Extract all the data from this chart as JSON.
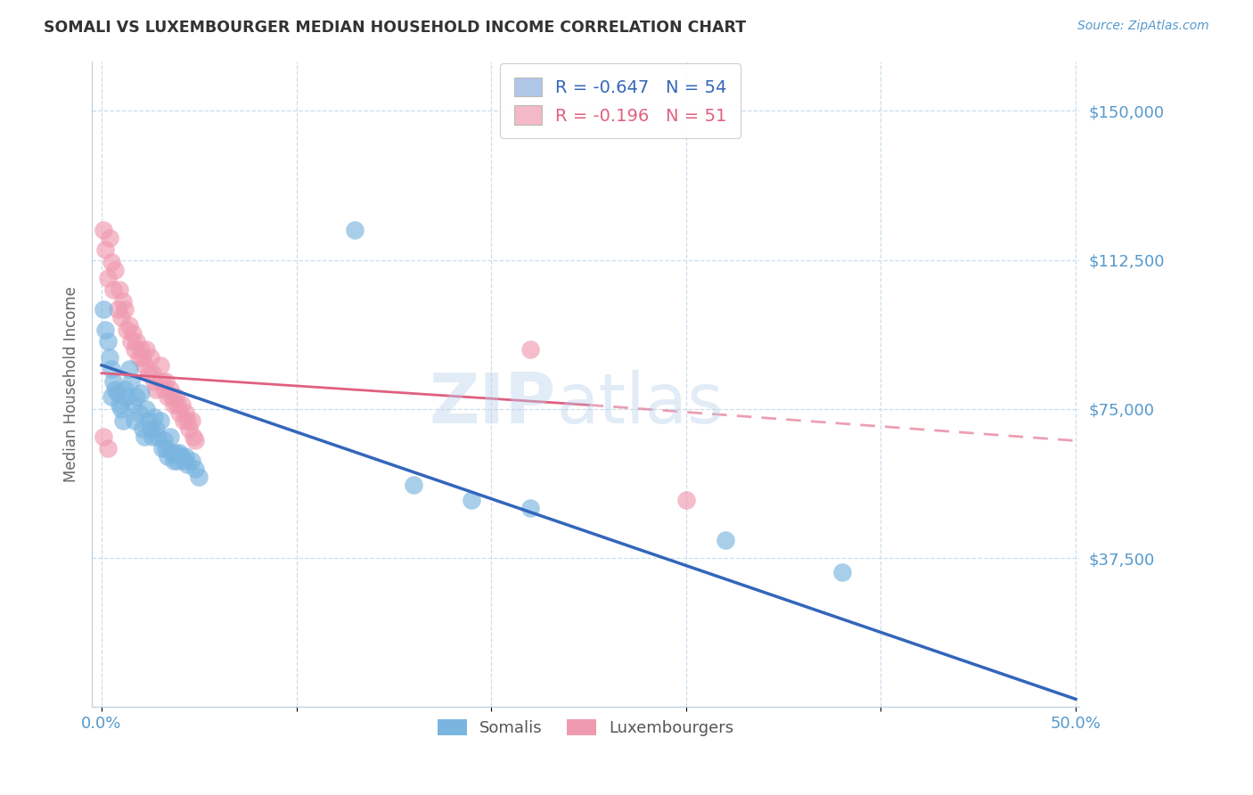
{
  "title": "SOMALI VS LUXEMBOURGER MEDIAN HOUSEHOLD INCOME CORRELATION CHART",
  "source_text": "Source: ZipAtlas.com",
  "ylabel": "Median Household Income",
  "xlim": [
    0.0,
    0.5
  ],
  "ylim": [
    0,
    162500
  ],
  "yticks": [
    0,
    37500,
    75000,
    112500,
    150000
  ],
  "yticklabels": [
    "",
    "$37,500",
    "$75,000",
    "$112,500",
    "$150,000"
  ],
  "watermark_zip": "ZIP",
  "watermark_atlas": "atlas",
  "somali_color": "#7ab5e0",
  "luxembourger_color": "#f09ab0",
  "somali_line_color": "#3366bb",
  "luxembourger_line_color": "#e06080",
  "legend_box_color_1": "#aec6e8",
  "legend_box_color_2": "#f4b8c8",
  "somali_scatter": [
    [
      0.001,
      100000
    ],
    [
      0.002,
      95000
    ],
    [
      0.003,
      92000
    ],
    [
      0.004,
      88000
    ],
    [
      0.005,
      85000
    ],
    [
      0.005,
      78000
    ],
    [
      0.006,
      82000
    ],
    [
      0.007,
      80000
    ],
    [
      0.008,
      79000
    ],
    [
      0.009,
      76000
    ],
    [
      0.01,
      75000
    ],
    [
      0.011,
      72000
    ],
    [
      0.012,
      80000
    ],
    [
      0.013,
      78000
    ],
    [
      0.014,
      85000
    ],
    [
      0.015,
      82000
    ],
    [
      0.016,
      76000
    ],
    [
      0.017,
      72000
    ],
    [
      0.018,
      78000
    ],
    [
      0.019,
      74000
    ],
    [
      0.02,
      79000
    ],
    [
      0.021,
      70000
    ],
    [
      0.022,
      68000
    ],
    [
      0.023,
      75000
    ],
    [
      0.024,
      72000
    ],
    [
      0.025,
      70000
    ],
    [
      0.026,
      68000
    ],
    [
      0.027,
      73000
    ],
    [
      0.028,
      70000
    ],
    [
      0.029,
      68000
    ],
    [
      0.03,
      72000
    ],
    [
      0.031,
      65000
    ],
    [
      0.032,
      67000
    ],
    [
      0.033,
      65000
    ],
    [
      0.034,
      63000
    ],
    [
      0.035,
      68000
    ],
    [
      0.036,
      64000
    ],
    [
      0.037,
      62000
    ],
    [
      0.038,
      64000
    ],
    [
      0.039,
      62000
    ],
    [
      0.04,
      64000
    ],
    [
      0.041,
      63000
    ],
    [
      0.042,
      62000
    ],
    [
      0.043,
      63000
    ],
    [
      0.044,
      61000
    ],
    [
      0.046,
      62000
    ],
    [
      0.048,
      60000
    ],
    [
      0.05,
      58000
    ],
    [
      0.13,
      120000
    ],
    [
      0.16,
      56000
    ],
    [
      0.19,
      52000
    ],
    [
      0.22,
      50000
    ],
    [
      0.32,
      42000
    ],
    [
      0.38,
      34000
    ]
  ],
  "luxembourger_scatter": [
    [
      0.001,
      120000
    ],
    [
      0.002,
      115000
    ],
    [
      0.003,
      108000
    ],
    [
      0.004,
      118000
    ],
    [
      0.005,
      112000
    ],
    [
      0.006,
      105000
    ],
    [
      0.007,
      110000
    ],
    [
      0.008,
      100000
    ],
    [
      0.009,
      105000
    ],
    [
      0.01,
      98000
    ],
    [
      0.011,
      102000
    ],
    [
      0.012,
      100000
    ],
    [
      0.013,
      95000
    ],
    [
      0.014,
      96000
    ],
    [
      0.015,
      92000
    ],
    [
      0.016,
      94000
    ],
    [
      0.017,
      90000
    ],
    [
      0.018,
      92000
    ],
    [
      0.019,
      88000
    ],
    [
      0.02,
      90000
    ],
    [
      0.021,
      88000
    ],
    [
      0.022,
      86000
    ],
    [
      0.023,
      90000
    ],
    [
      0.024,
      84000
    ],
    [
      0.025,
      88000
    ],
    [
      0.026,
      84000
    ],
    [
      0.027,
      82000
    ],
    [
      0.028,
      80000
    ],
    [
      0.03,
      86000
    ],
    [
      0.031,
      82000
    ],
    [
      0.032,
      80000
    ],
    [
      0.033,
      82000
    ],
    [
      0.034,
      78000
    ],
    [
      0.035,
      80000
    ],
    [
      0.036,
      78000
    ],
    [
      0.037,
      76000
    ],
    [
      0.038,
      78000
    ],
    [
      0.039,
      76000
    ],
    [
      0.04,
      74000
    ],
    [
      0.041,
      76000
    ],
    [
      0.042,
      72000
    ],
    [
      0.043,
      74000
    ],
    [
      0.044,
      72000
    ],
    [
      0.045,
      70000
    ],
    [
      0.046,
      72000
    ],
    [
      0.047,
      68000
    ],
    [
      0.048,
      67000
    ],
    [
      0.001,
      68000
    ],
    [
      0.003,
      65000
    ],
    [
      0.22,
      90000
    ],
    [
      0.3,
      52000
    ]
  ],
  "somali_line": {
    "x0": 0.0,
    "y0": 86000,
    "x1": 0.5,
    "y1": 2000
  },
  "lux_line_solid": {
    "x0": 0.0,
    "y0": 84000,
    "x1": 0.25,
    "y1": 76000
  },
  "lux_line_dash": {
    "x0": 0.25,
    "y0": 76000,
    "x1": 0.5,
    "y1": 67000
  }
}
